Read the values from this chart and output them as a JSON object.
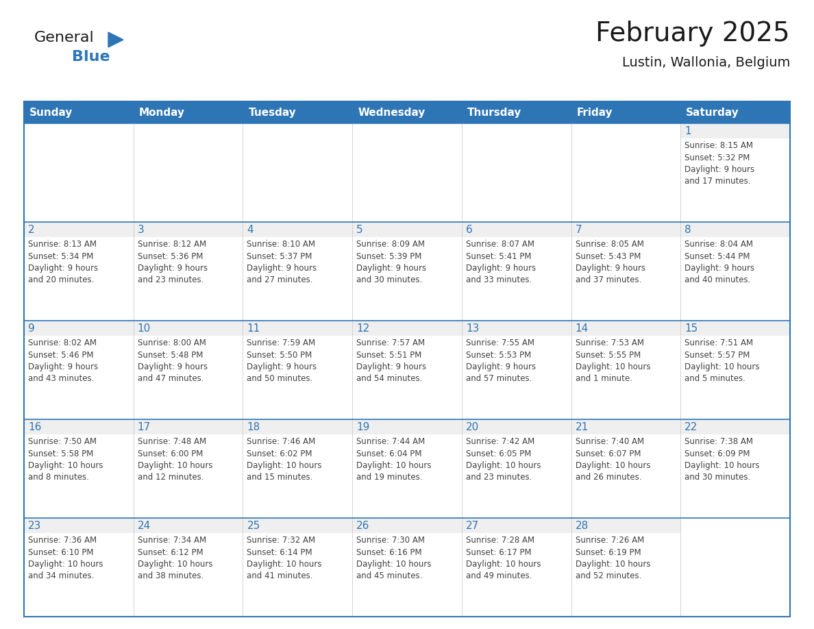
{
  "title": "February 2025",
  "subtitle": "Lustin, Wallonia, Belgium",
  "header_color": "#2E75B6",
  "header_text_color": "#FFFFFF",
  "cell_bg_white": "#FFFFFF",
  "cell_day_bg": "#EFEFEF",
  "border_color": "#2E75B6",
  "day_number_color": "#2E75B6",
  "info_text_color": "#404040",
  "days_of_week": [
    "Sunday",
    "Monday",
    "Tuesday",
    "Wednesday",
    "Thursday",
    "Friday",
    "Saturday"
  ],
  "weeks": [
    [
      {
        "day": "",
        "info": ""
      },
      {
        "day": "",
        "info": ""
      },
      {
        "day": "",
        "info": ""
      },
      {
        "day": "",
        "info": ""
      },
      {
        "day": "",
        "info": ""
      },
      {
        "day": "",
        "info": ""
      },
      {
        "day": "1",
        "info": "Sunrise: 8:15 AM\nSunset: 5:32 PM\nDaylight: 9 hours\nand 17 minutes."
      }
    ],
    [
      {
        "day": "2",
        "info": "Sunrise: 8:13 AM\nSunset: 5:34 PM\nDaylight: 9 hours\nand 20 minutes."
      },
      {
        "day": "3",
        "info": "Sunrise: 8:12 AM\nSunset: 5:36 PM\nDaylight: 9 hours\nand 23 minutes."
      },
      {
        "day": "4",
        "info": "Sunrise: 8:10 AM\nSunset: 5:37 PM\nDaylight: 9 hours\nand 27 minutes."
      },
      {
        "day": "5",
        "info": "Sunrise: 8:09 AM\nSunset: 5:39 PM\nDaylight: 9 hours\nand 30 minutes."
      },
      {
        "day": "6",
        "info": "Sunrise: 8:07 AM\nSunset: 5:41 PM\nDaylight: 9 hours\nand 33 minutes."
      },
      {
        "day": "7",
        "info": "Sunrise: 8:05 AM\nSunset: 5:43 PM\nDaylight: 9 hours\nand 37 minutes."
      },
      {
        "day": "8",
        "info": "Sunrise: 8:04 AM\nSunset: 5:44 PM\nDaylight: 9 hours\nand 40 minutes."
      }
    ],
    [
      {
        "day": "9",
        "info": "Sunrise: 8:02 AM\nSunset: 5:46 PM\nDaylight: 9 hours\nand 43 minutes."
      },
      {
        "day": "10",
        "info": "Sunrise: 8:00 AM\nSunset: 5:48 PM\nDaylight: 9 hours\nand 47 minutes."
      },
      {
        "day": "11",
        "info": "Sunrise: 7:59 AM\nSunset: 5:50 PM\nDaylight: 9 hours\nand 50 minutes."
      },
      {
        "day": "12",
        "info": "Sunrise: 7:57 AM\nSunset: 5:51 PM\nDaylight: 9 hours\nand 54 minutes."
      },
      {
        "day": "13",
        "info": "Sunrise: 7:55 AM\nSunset: 5:53 PM\nDaylight: 9 hours\nand 57 minutes."
      },
      {
        "day": "14",
        "info": "Sunrise: 7:53 AM\nSunset: 5:55 PM\nDaylight: 10 hours\nand 1 minute."
      },
      {
        "day": "15",
        "info": "Sunrise: 7:51 AM\nSunset: 5:57 PM\nDaylight: 10 hours\nand 5 minutes."
      }
    ],
    [
      {
        "day": "16",
        "info": "Sunrise: 7:50 AM\nSunset: 5:58 PM\nDaylight: 10 hours\nand 8 minutes."
      },
      {
        "day": "17",
        "info": "Sunrise: 7:48 AM\nSunset: 6:00 PM\nDaylight: 10 hours\nand 12 minutes."
      },
      {
        "day": "18",
        "info": "Sunrise: 7:46 AM\nSunset: 6:02 PM\nDaylight: 10 hours\nand 15 minutes."
      },
      {
        "day": "19",
        "info": "Sunrise: 7:44 AM\nSunset: 6:04 PM\nDaylight: 10 hours\nand 19 minutes."
      },
      {
        "day": "20",
        "info": "Sunrise: 7:42 AM\nSunset: 6:05 PM\nDaylight: 10 hours\nand 23 minutes."
      },
      {
        "day": "21",
        "info": "Sunrise: 7:40 AM\nSunset: 6:07 PM\nDaylight: 10 hours\nand 26 minutes."
      },
      {
        "day": "22",
        "info": "Sunrise: 7:38 AM\nSunset: 6:09 PM\nDaylight: 10 hours\nand 30 minutes."
      }
    ],
    [
      {
        "day": "23",
        "info": "Sunrise: 7:36 AM\nSunset: 6:10 PM\nDaylight: 10 hours\nand 34 minutes."
      },
      {
        "day": "24",
        "info": "Sunrise: 7:34 AM\nSunset: 6:12 PM\nDaylight: 10 hours\nand 38 minutes."
      },
      {
        "day": "25",
        "info": "Sunrise: 7:32 AM\nSunset: 6:14 PM\nDaylight: 10 hours\nand 41 minutes."
      },
      {
        "day": "26",
        "info": "Sunrise: 7:30 AM\nSunset: 6:16 PM\nDaylight: 10 hours\nand 45 minutes."
      },
      {
        "day": "27",
        "info": "Sunrise: 7:28 AM\nSunset: 6:17 PM\nDaylight: 10 hours\nand 49 minutes."
      },
      {
        "day": "28",
        "info": "Sunrise: 7:26 AM\nSunset: 6:19 PM\nDaylight: 10 hours\nand 52 minutes."
      },
      {
        "day": "",
        "info": ""
      }
    ]
  ],
  "logo_general_color": "#1a1a1a",
  "logo_blue_color": "#2E75B6",
  "title_fontsize": 28,
  "subtitle_fontsize": 14,
  "header_fontsize": 11,
  "day_number_fontsize": 11,
  "info_fontsize": 8.5
}
